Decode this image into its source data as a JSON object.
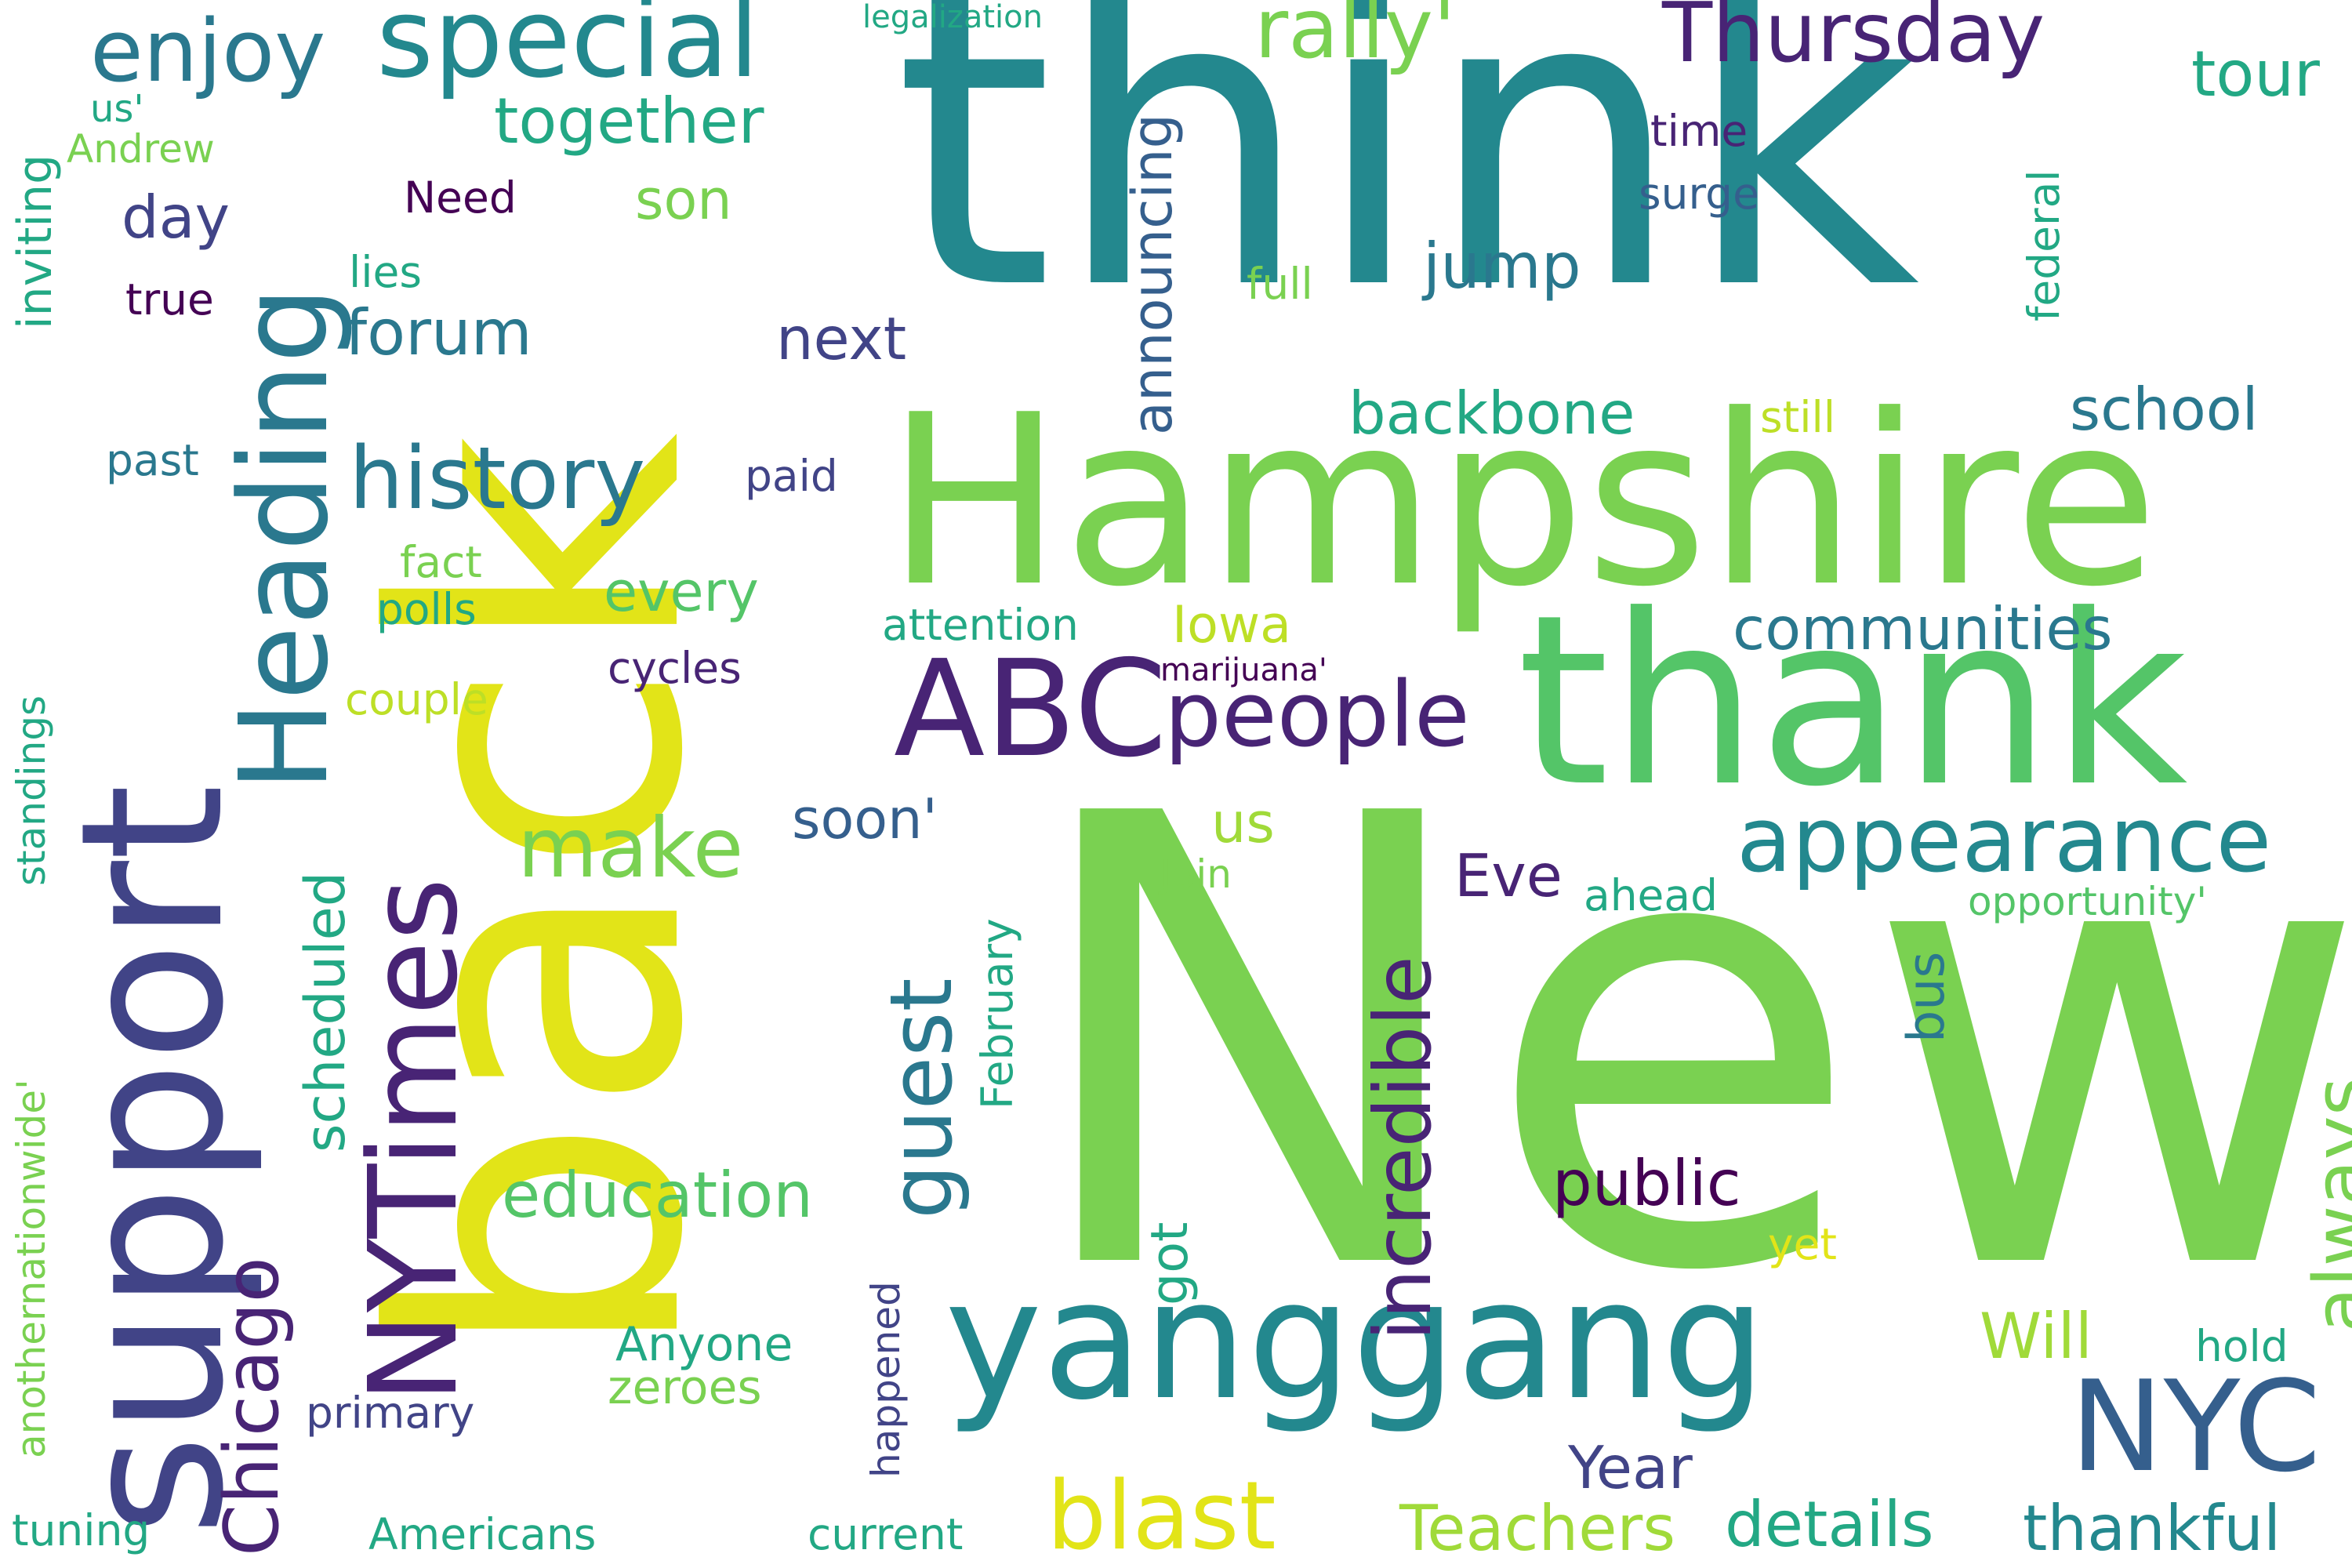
{
  "palette": {
    "yellow": "#e2e418",
    "light_green": "#7ad151",
    "green": "#54c568",
    "teal_green": "#22a884",
    "teal": "#23888e",
    "teal_blue": "#2a788e",
    "blue": "#355f8d",
    "indigo": "#414487",
    "purple": "#482475",
    "dark_purple": "#440154"
  },
  "words": {
    "back": "back",
    "think": "think",
    "new": "New",
    "hampshire": "Hampshire",
    "thank": "thank",
    "support": "support",
    "yanggang": "yanggang",
    "abc": "ABC",
    "nytimes": "NYTimes",
    "heading": "Heading",
    "nyc": "NYC",
    "special": "special",
    "enjoy": "enjoy",
    "thursday": "Thursday",
    "rally": "rally'",
    "tour": "tour",
    "together": "together",
    "history": "history",
    "people": "people",
    "appearance": "appearance",
    "guest": "guest",
    "incredible": "incredible",
    "always": "always",
    "blast": "blast",
    "make": "make",
    "education": "education",
    "public": "public",
    "thankful": "thankful",
    "details": "details",
    "teachers": "Teachers",
    "chicago": "Chicago",
    "communities": "communities",
    "backbone": "backbone",
    "school": "school",
    "announcing": "announcing",
    "forum": "forum",
    "next": "next",
    "jump": "jump",
    "day": "day",
    "son": "son",
    "need": "Need",
    "legalization": "legalization",
    "us_quote": "us'",
    "andrew": "Andrew",
    "inviting": "inviting",
    "true": "true",
    "lies": "lies",
    "past": "past",
    "paid": "paid",
    "fact": "fact",
    "polls": "polls",
    "every": "every",
    "attention": "attention",
    "iowa": "Iowa",
    "cycles": "cycles",
    "couple": "couple",
    "marijuana": "marijuana'",
    "time": "time",
    "surge": "surge",
    "federal": "federal",
    "full": "full",
    "still": "still",
    "soon": "soon'",
    "us": "us",
    "join": "Join",
    "eve": "Eve",
    "ahead": "ahead",
    "opportunity": "opportunity'",
    "scheduled": "scheduled",
    "february": "February",
    "bus": "bus",
    "standings": "standings",
    "anothernationwide": "anothernationwide'",
    "got": "got",
    "yet": "yet",
    "will": "Will",
    "hold": "hold",
    "anyone": "Anyone",
    "zeroes": "zeroes",
    "happened": "happened",
    "primary": "primary",
    "year": "Year",
    "tuning": "tuning",
    "americans": "Americans",
    "current": "current"
  }
}
